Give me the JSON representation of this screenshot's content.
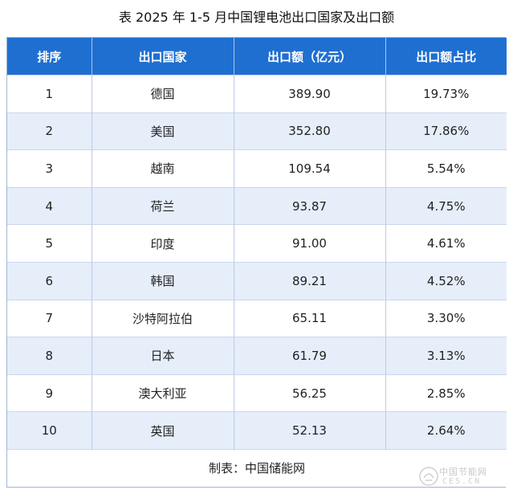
{
  "title": "表  2025 年 1-5 月中国锂电池出口国家及出口额",
  "table": {
    "headers": [
      "排序",
      "出口国家",
      "出口额（亿元）",
      "出口额占比"
    ],
    "rows": [
      {
        "rank": "1",
        "country": "德国",
        "amount": "389.90",
        "share": "19.73%"
      },
      {
        "rank": "2",
        "country": "美国",
        "amount": "352.80",
        "share": "17.86%"
      },
      {
        "rank": "3",
        "country": "越南",
        "amount": "109.54",
        "share": "5.54%"
      },
      {
        "rank": "4",
        "country": "荷兰",
        "amount": "93.87",
        "share": "4.75%"
      },
      {
        "rank": "5",
        "country": "印度",
        "amount": "91.00",
        "share": "4.61%"
      },
      {
        "rank": "6",
        "country": "韩国",
        "amount": "89.21",
        "share": "4.52%"
      },
      {
        "rank": "7",
        "country": "沙特阿拉伯",
        "amount": "65.11",
        "share": "3.30%"
      },
      {
        "rank": "8",
        "country": "日本",
        "amount": "61.79",
        "share": "3.13%"
      },
      {
        "rank": "9",
        "country": "澳大利亚",
        "amount": "56.25",
        "share": "2.85%"
      },
      {
        "rank": "10",
        "country": "英国",
        "amount": "52.13",
        "share": "2.64%"
      }
    ],
    "footer": "制表：中国储能网"
  },
  "watermark": {
    "text": "中国节能网",
    "sub": "CES.CN"
  },
  "colors": {
    "header_bg": "#1f6fd1",
    "stripe_bg": "#e6eefa"
  }
}
